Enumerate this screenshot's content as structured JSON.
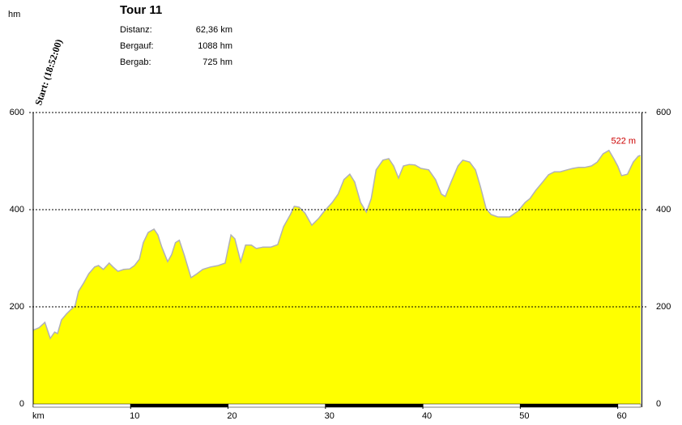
{
  "chart_data": {
    "type": "area",
    "title": "Tour 11",
    "info": [
      {
        "label": "Distanz:",
        "value": "62,36 km"
      },
      {
        "label": "Bergauf:",
        "value": "1088 hm"
      },
      {
        "label": "Bergab:",
        "value": "725 hm"
      }
    ],
    "start_label": "Start: (18:52:00)",
    "y_label": "hm",
    "x_label": "km",
    "x": [
      0,
      0.6,
      1.2,
      1.75,
      2.2,
      2.5,
      2.9,
      3.4,
      3.9,
      4.3,
      4.65,
      5.15,
      5.7,
      6.3,
      6.7,
      7.2,
      7.8,
      8.2,
      8.7,
      9.3,
      9.9,
      10.4,
      10.9,
      11.3,
      11.8,
      12.4,
      12.8,
      13.2,
      13.8,
      14.2,
      14.6,
      15.0,
      15.5,
      16.2,
      16.8,
      17.4,
      18.2,
      19.0,
      19.7,
      20.3,
      20.7,
      21.3,
      21.8,
      22.4,
      22.9,
      23.6,
      24.4,
      25.1,
      25.7,
      26.4,
      26.8,
      27.3,
      27.9,
      28.6,
      29.3,
      29.8,
      30.7,
      31.3,
      31.9,
      32.5,
      33.0,
      33.6,
      34.2,
      34.7,
      35.2,
      35.9,
      36.5,
      37.0,
      37.5,
      38.0,
      38.6,
      39.2,
      39.8,
      40.6,
      41.3,
      41.9,
      42.3,
      42.9,
      43.6,
      44.1,
      44.8,
      45.4,
      45.9,
      46.5,
      47.0,
      47.7,
      48.3,
      48.9,
      49.8,
      50.5,
      51.0,
      51.6,
      52.3,
      52.9,
      53.5,
      54.1,
      54.8,
      55.4,
      56.0,
      56.6,
      57.3,
      57.9,
      58.5,
      59.1,
      59.6,
      60.0,
      60.4,
      61.0,
      61.6,
      62.1,
      62.36
    ],
    "values": [
      152,
      157,
      168,
      135,
      148,
      145,
      173,
      185,
      195,
      202,
      232,
      248,
      268,
      282,
      285,
      277,
      290,
      282,
      273,
      277,
      278,
      285,
      298,
      332,
      353,
      360,
      348,
      323,
      293,
      307,
      332,
      337,
      307,
      260,
      268,
      277,
      282,
      285,
      290,
      348,
      340,
      293,
      327,
      327,
      320,
      323,
      323,
      328,
      365,
      390,
      407,
      405,
      393,
      368,
      382,
      395,
      415,
      432,
      462,
      473,
      457,
      415,
      395,
      423,
      482,
      502,
      505,
      490,
      465,
      490,
      493,
      492,
      485,
      482,
      462,
      432,
      427,
      457,
      490,
      502,
      498,
      482,
      448,
      402,
      390,
      385,
      385,
      385,
      398,
      415,
      423,
      440,
      457,
      472,
      478,
      478,
      482,
      485,
      487,
      487,
      490,
      498,
      515,
      522,
      505,
      490,
      470,
      473,
      498,
      510,
      512
    ],
    "color": "#ffff00",
    "line_color": "#b0b0b8",
    "annotations": [
      {
        "text": "522 m",
        "x": 59.1,
        "y": 522,
        "color": "#cc0000"
      }
    ],
    "xlim": [
      0,
      62.36
    ],
    "xticks": [
      10,
      20,
      30,
      40,
      50,
      60
    ],
    "ylim": [
      0,
      600
    ],
    "yticks": [
      0,
      200,
      400,
      600
    ],
    "grid": true
  }
}
